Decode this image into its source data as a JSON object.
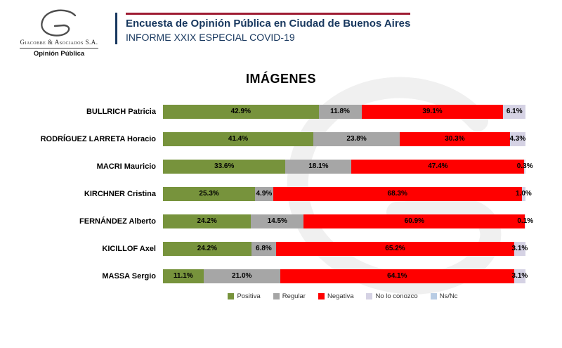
{
  "colors": {
    "header_navy": "#17375E",
    "header_rule_red": "#9E1B32",
    "positive_green": "#77933C",
    "regular_gray": "#A6A6A6",
    "negative_red": "#FF0000",
    "unknown_lavender": "#D5D2E4",
    "nsnc_blue": "#B8CCE4"
  },
  "logo": {
    "company": "Giacobbe & Asociados S.A.",
    "division": "Opinión Pública"
  },
  "header": {
    "title": "Encuesta de Opinión Pública en Ciudad de Buenos Aires",
    "subtitle": "INFORME XXIX ESPECIAL COVID-19"
  },
  "chart_data": {
    "type": "bar",
    "orientation": "horizontal",
    "stacked": true,
    "title": "IMÁGENES",
    "value_format": "percent",
    "xlim": [
      0,
      100
    ],
    "grid": false,
    "legend_position": "bottom",
    "categories": [
      "BULLRICH Patricia",
      "RODRÍGUEZ LARRETA Horacio",
      "MACRI Mauricio",
      "KIRCHNER Cristina",
      "FERNÁNDEZ Alberto",
      "KICILLOF Axel",
      "MASSA Sergio"
    ],
    "series": [
      {
        "name": "Positiva",
        "color": "#77933C",
        "values": [
          42.9,
          41.4,
          33.6,
          25.3,
          24.2,
          24.2,
          11.1
        ]
      },
      {
        "name": "Regular",
        "color": "#A6A6A6",
        "values": [
          11.8,
          23.8,
          18.1,
          4.9,
          14.5,
          6.8,
          21.0
        ]
      },
      {
        "name": "Negativa",
        "color": "#FF0000",
        "values": [
          39.1,
          30.3,
          47.4,
          68.3,
          60.9,
          65.2,
          64.1
        ]
      },
      {
        "name": "No lo conozco",
        "color": "#D5D2E4",
        "values": [
          6.1,
          4.3,
          0.3,
          1.0,
          0.1,
          3.1,
          3.1
        ]
      }
    ],
    "legend": [
      {
        "label": "Positiva",
        "color": "#77933C"
      },
      {
        "label": "Regular",
        "color": "#A6A6A6"
      },
      {
        "label": "Negativa",
        "color": "#FF0000"
      },
      {
        "label": "No lo conozco",
        "color": "#D5D2E4"
      },
      {
        "label": "Ns/Nc",
        "color": "#B8CCE4"
      }
    ]
  }
}
